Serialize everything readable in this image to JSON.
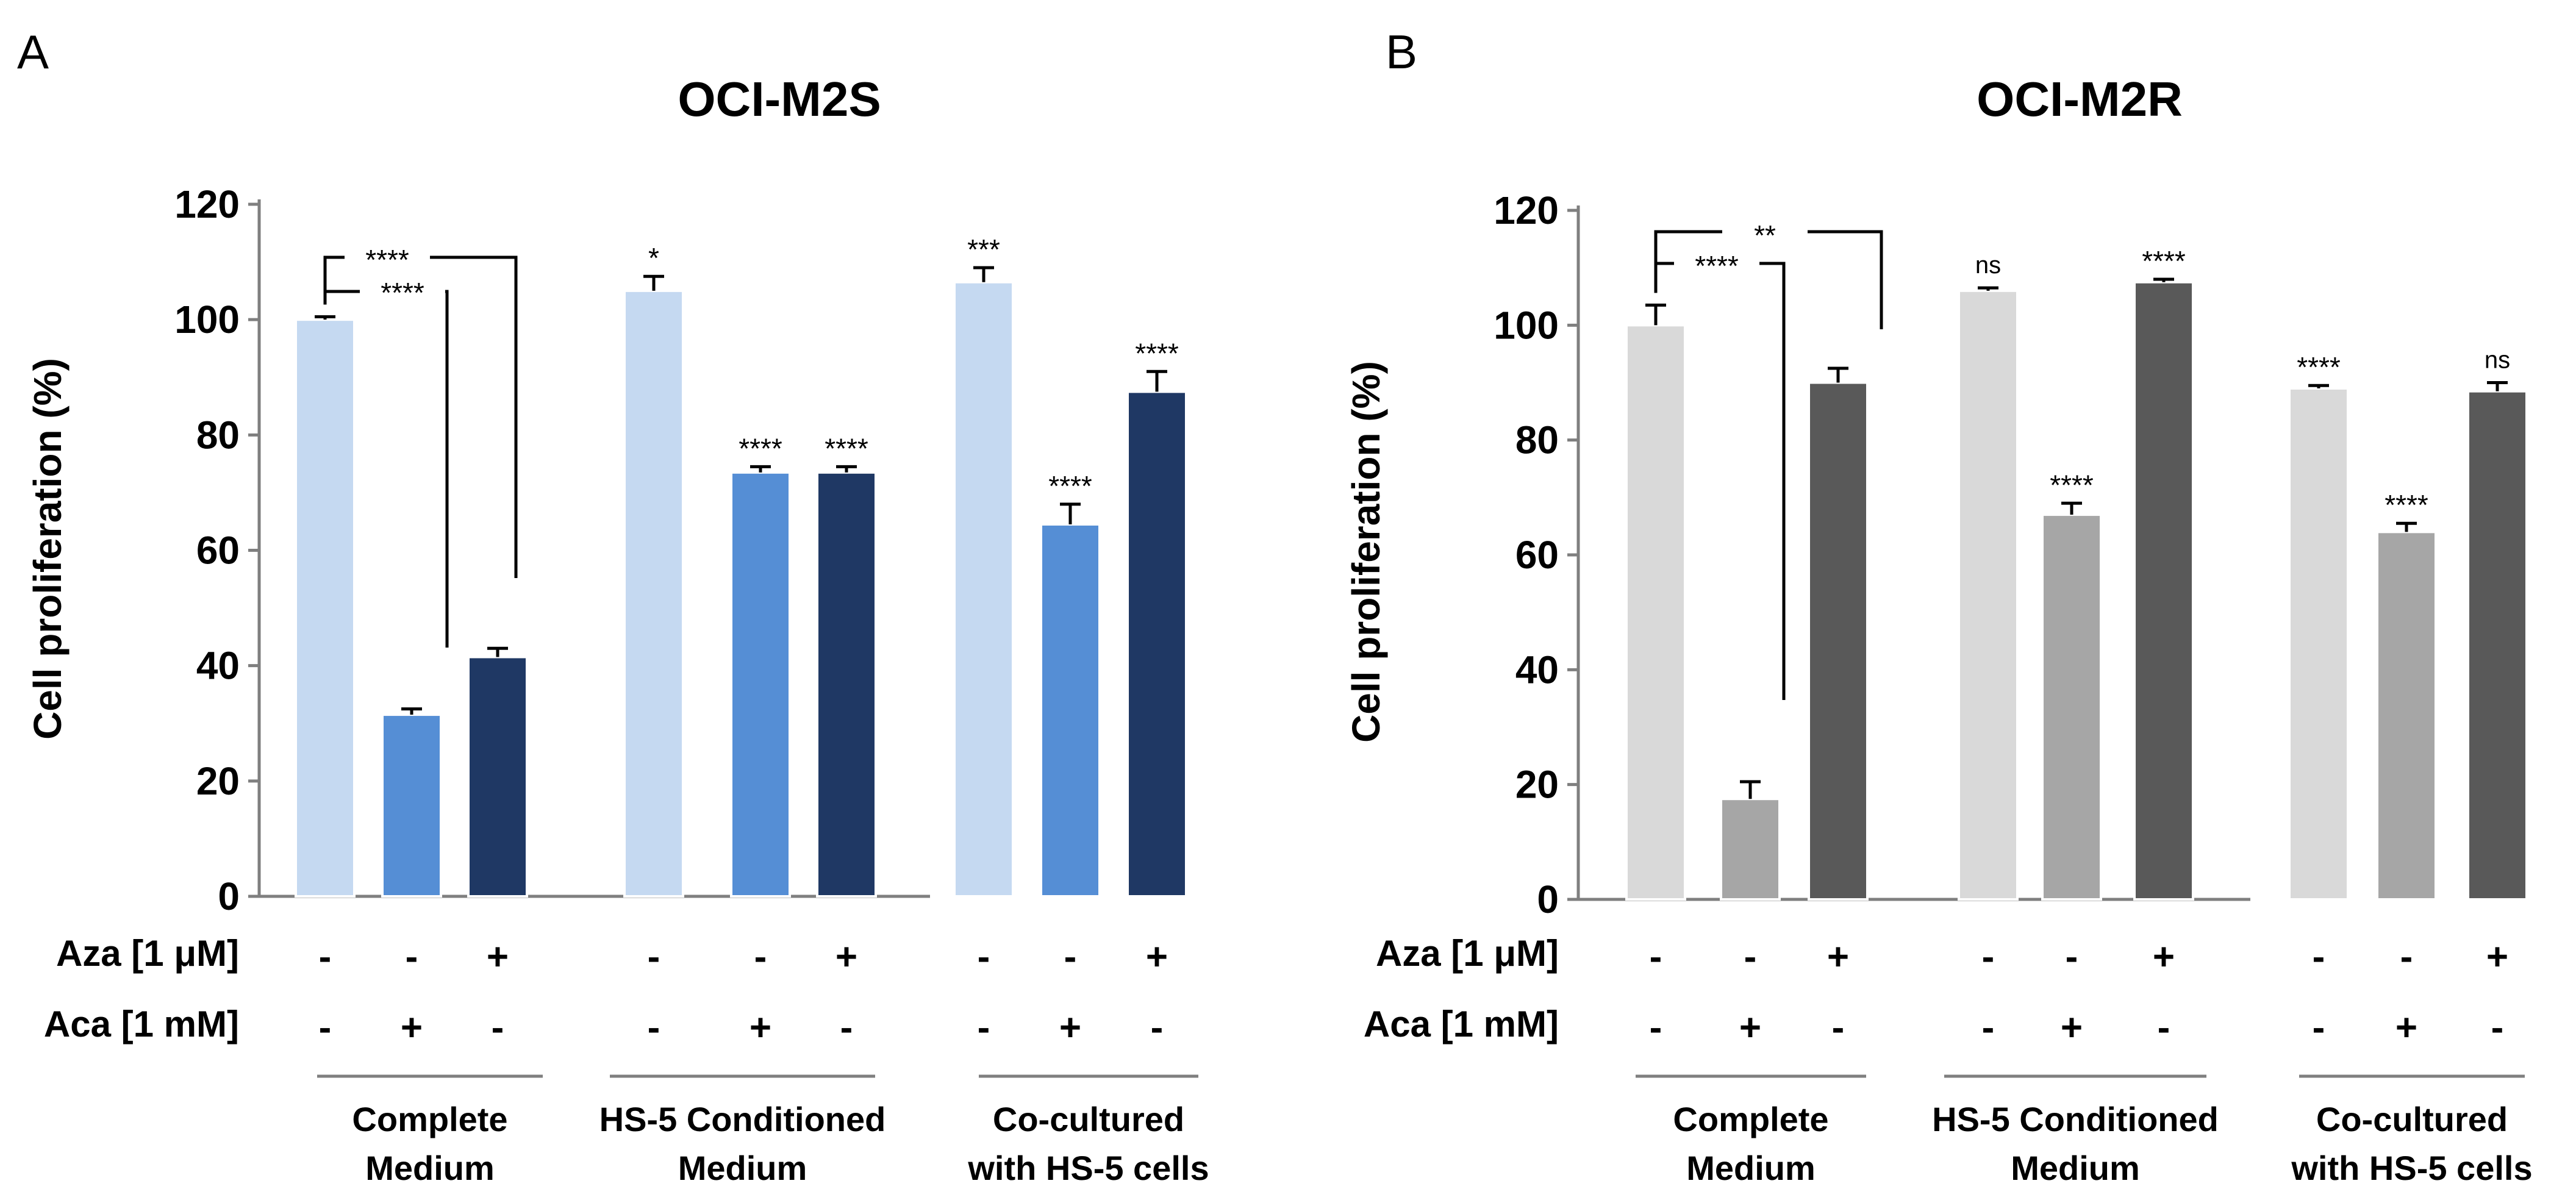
{
  "chart_data": [
    {
      "type": "bar",
      "panel": "A",
      "title": "OCI-M2S",
      "ylabel": "Cell proliferation (%)",
      "ylim": [
        0,
        120
      ],
      "yticks": [
        "0",
        "20",
        "40",
        "60",
        "80",
        "100",
        "120"
      ],
      "row_labels": [
        "Aza [1 μM]",
        "Aca [1 mM]"
      ],
      "group_labels": [
        [
          "Complete",
          "Medium"
        ],
        [
          "HS-5 Conditioned",
          "Medium"
        ],
        [
          "Co-cultured",
          "with HS-5 cells"
        ]
      ],
      "colors": [
        "#c5d9f1",
        "#558ed5",
        "#1f3864"
      ],
      "groups": [
        {
          "bars": [
            {
              "value": 100,
              "error": 0.5,
              "sig": "",
              "aza": "-",
              "aca": "-"
            },
            {
              "value": 31.5,
              "error": 1.0,
              "sig": "",
              "aza": "-",
              "aca": "+"
            },
            {
              "value": 41.5,
              "error": 1.5,
              "sig": "",
              "aza": "+",
              "aca": "-"
            }
          ]
        },
        {
          "bars": [
            {
              "value": 105,
              "error": 2.5,
              "sig": "*",
              "aza": "-",
              "aca": "-"
            },
            {
              "value": 73.5,
              "error": 1.0,
              "sig": "****",
              "aza": "-",
              "aca": "+"
            },
            {
              "value": 73.5,
              "error": 1.0,
              "sig": "****",
              "aza": "+",
              "aca": "-"
            }
          ]
        },
        {
          "bars": [
            {
              "value": 106.5,
              "error": 2.5,
              "sig": "***",
              "aza": "-",
              "aca": "-"
            },
            {
              "value": 64.5,
              "error": 3.5,
              "sig": "****",
              "aza": "-",
              "aca": "+"
            },
            {
              "value": 87.5,
              "error": 3.5,
              "sig": "****",
              "aza": "+",
              "aca": "-"
            }
          ]
        }
      ],
      "bracket_labels": [
        "****",
        "****"
      ]
    },
    {
      "type": "bar",
      "panel": "B",
      "title": "OCI-M2R",
      "ylabel": "Cell proliferation (%)",
      "ylim": [
        0,
        120
      ],
      "yticks": [
        "0",
        "20",
        "40",
        "60",
        "80",
        "100",
        "120"
      ],
      "row_labels": [
        "Aza [1 μM]",
        "Aca [1 mM]"
      ],
      "group_labels": [
        [
          "Complete",
          "Medium"
        ],
        [
          "HS-5 Conditioned",
          "Medium"
        ],
        [
          "Co-cultured",
          "with HS-5 cells"
        ]
      ],
      "colors": [
        "#d9d9d9",
        "#a6a6a6",
        "#595959"
      ],
      "groups": [
        {
          "bars": [
            {
              "value": 100,
              "error": 3.5,
              "sig": "",
              "aza": "-",
              "aca": "-"
            },
            {
              "value": 17.5,
              "error": 3.0,
              "sig": "",
              "aza": "-",
              "aca": "+"
            },
            {
              "value": 90,
              "error": 2.5,
              "sig": "",
              "aza": "+",
              "aca": "-"
            }
          ]
        },
        {
          "bars": [
            {
              "value": 106,
              "error": 0.5,
              "sig": "ns",
              "aza": "-",
              "aca": "-"
            },
            {
              "value": 67,
              "error": 2.0,
              "sig": "****",
              "aza": "-",
              "aca": "+"
            },
            {
              "value": 107.5,
              "error": 0.5,
              "sig": "****",
              "aza": "+",
              "aca": "-"
            }
          ]
        },
        {
          "bars": [
            {
              "value": 89,
              "error": 0.5,
              "sig": "****",
              "aza": "-",
              "aca": "-"
            },
            {
              "value": 64,
              "error": 1.5,
              "sig": "****",
              "aza": "-",
              "aca": "+"
            },
            {
              "value": 88.5,
              "error": 1.5,
              "sig": "ns",
              "aza": "+",
              "aca": "-"
            }
          ]
        }
      ],
      "bracket_labels": [
        "****",
        "**"
      ]
    }
  ]
}
